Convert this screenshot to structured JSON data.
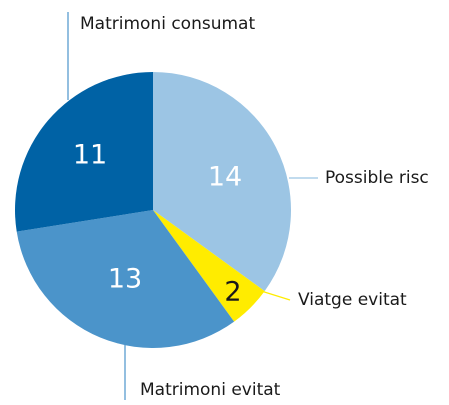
{
  "chart_data": {
    "type": "pie",
    "categories": [
      "Possible risc",
      "Viatge evitat",
      "Matrimoni evitat",
      "Matrimoni consumat"
    ],
    "values": [
      14,
      2,
      13,
      11
    ],
    "colors": [
      "#9cc5e4",
      "#ffec00",
      "#4b94ca",
      "#0062a5"
    ]
  }
}
